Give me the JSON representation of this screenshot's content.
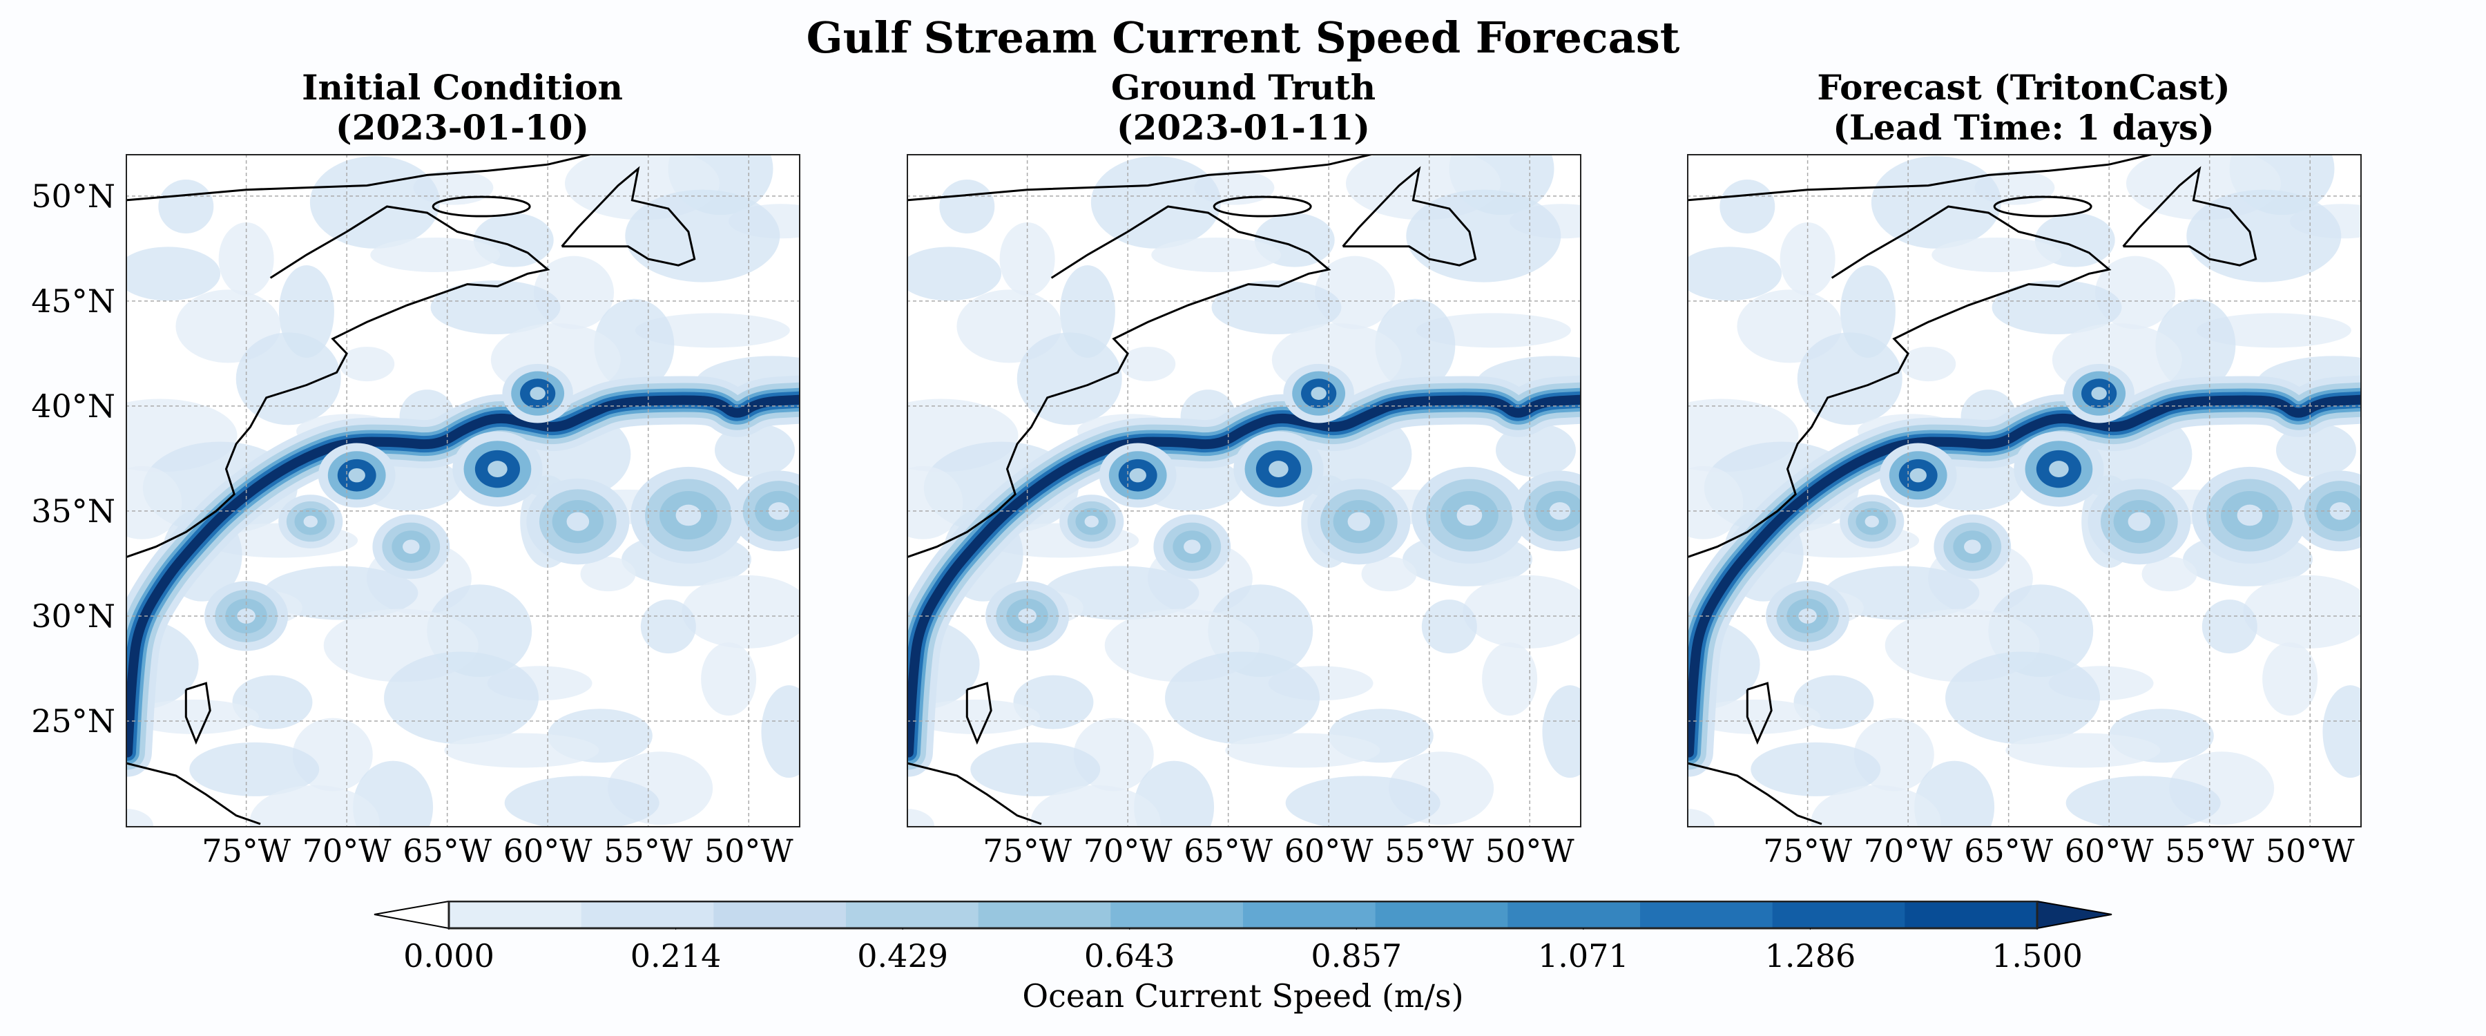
{
  "chart_data": [
    {
      "type": "heatmap",
      "suptitle": "Gulf Stream Current Speed Forecast",
      "panels": [
        {
          "title_line1": "Initial Condition",
          "title_line2": "(2023-01-10)"
        },
        {
          "title_line1": "Ground Truth",
          "title_line2": "(2023-01-11)"
        },
        {
          "title_line1": "Forecast (TritonCast)",
          "title_line2": "(Lead Time: 1 days)"
        }
      ],
      "lon_range": [
        -81,
        -47.5
      ],
      "lat_range": [
        20,
        52
      ],
      "x_ticks": [
        -75,
        -70,
        -65,
        -60,
        -55,
        -50
      ],
      "x_tick_labels": [
        "75°W",
        "70°W",
        "65°W",
        "60°W",
        "55°W",
        "50°W"
      ],
      "y_ticks": [
        50,
        45,
        40,
        35,
        30,
        25
      ],
      "y_tick_labels": [
        "50°N",
        "45°N",
        "40°N",
        "35°N",
        "30°N",
        "25°N"
      ],
      "grid": true,
      "colorbar": {
        "label": "Ocean Current Speed (m/s)",
        "range": [
          0,
          1.5
        ],
        "extend": "both",
        "tick_labels": [
          "0.000",
          "0.214",
          "0.429",
          "0.643",
          "0.857",
          "1.071",
          "1.286",
          "1.500"
        ],
        "colors": [
          "#ffffff",
          "#e3eef8",
          "#d5e5f4",
          "#c5daee",
          "#b0d2e7",
          "#98c6df",
          "#7db8da",
          "#62a8d3",
          "#4a98c9",
          "#3585bf",
          "#2171b5",
          "#125ea6",
          "#084d96",
          "#08306b"
        ]
      }
    }
  ]
}
